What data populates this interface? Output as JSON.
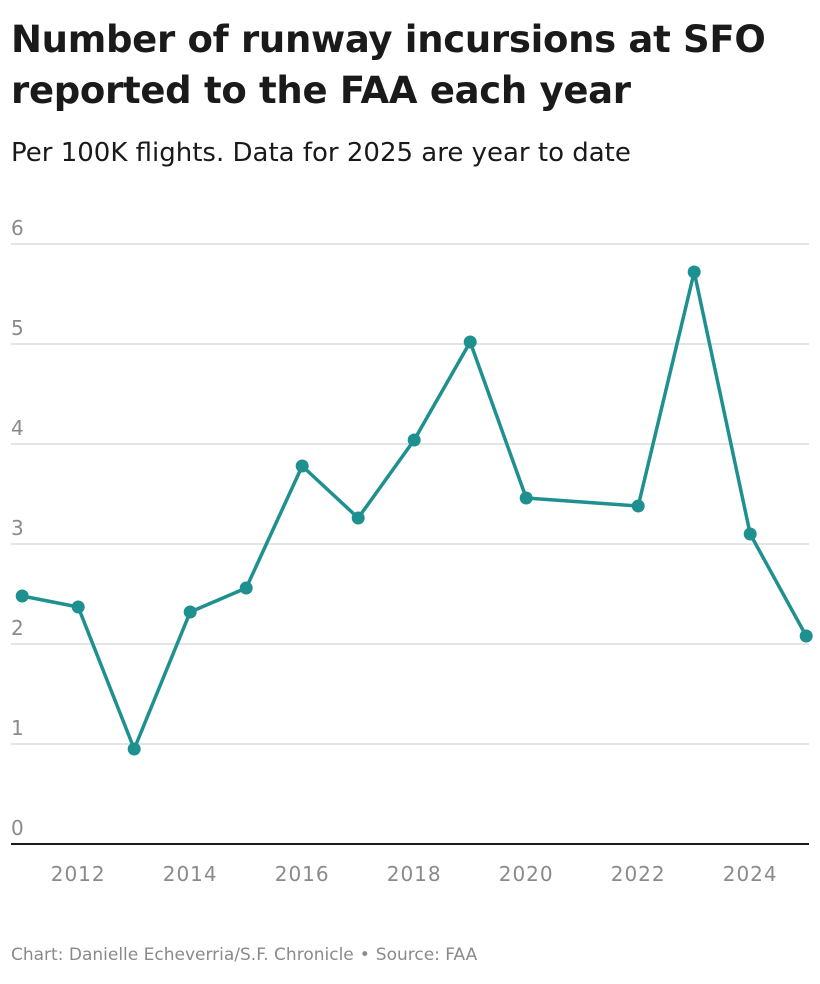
{
  "header": {
    "title": "Number of runway incursions at SFO reported to the FAA each year",
    "subtitle": "Per 100K flights. Data for 2025 are year to date"
  },
  "footer": {
    "credit": "Chart: Danielle Echeverria/S.F. Chronicle",
    "separator": "•",
    "source": "Source: FAA"
  },
  "colors": {
    "line": "#1f9090",
    "gridline": "#dcdcdc",
    "axis": "#1a1a1a",
    "tick_text": "#8a8a8a"
  },
  "chart_data": {
    "type": "line",
    "title": "Number of runway incursions at SFO reported to the FAA each year",
    "subtitle": "Per 100K flights. Data for 2025 are year to date",
    "xlabel": "",
    "ylabel": "",
    "x": [
      2011,
      2012,
      2013,
      2014,
      2015,
      2016,
      2017,
      2018,
      2019,
      2020,
      2022,
      2023,
      2024,
      2025
    ],
    "series": [
      {
        "name": "Runway incursions per 100K flights",
        "values": [
          2.48,
          2.37,
          0.95,
          2.32,
          2.56,
          3.78,
          3.26,
          4.04,
          5.02,
          3.46,
          3.38,
          5.72,
          3.1,
          2.08
        ]
      }
    ],
    "xlim": [
      2010.8,
      2025.05
    ],
    "ylim": [
      0,
      6
    ],
    "yticks": [
      "0",
      "1",
      "2",
      "3",
      "4",
      "5",
      "6"
    ],
    "xticks": [
      "2012",
      "2014",
      "2016",
      "2018",
      "2020",
      "2022",
      "2024"
    ],
    "grid": true,
    "legend": "none"
  }
}
